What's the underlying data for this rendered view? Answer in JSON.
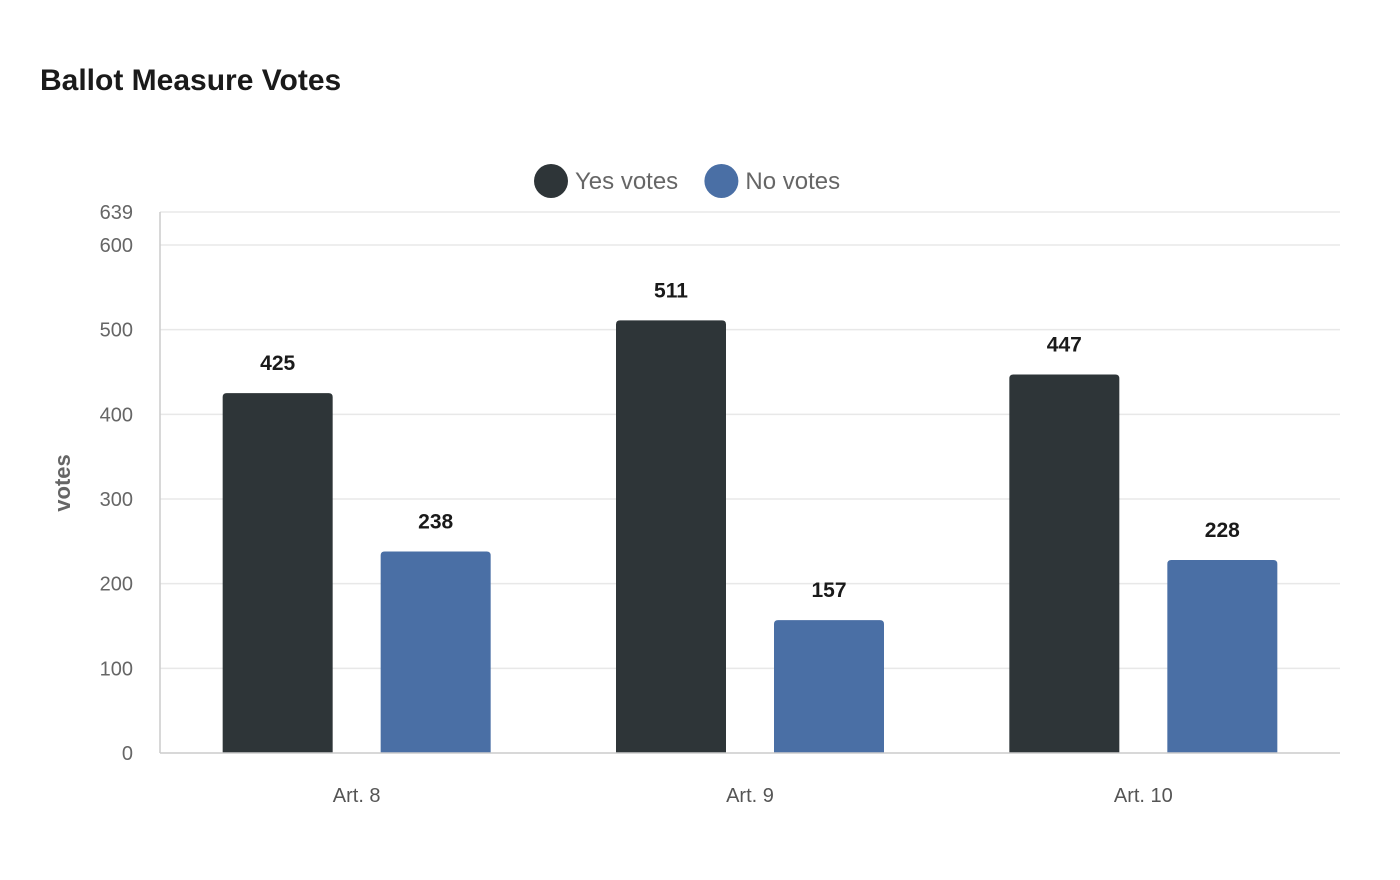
{
  "chart_data": {
    "type": "bar",
    "title": "Ballot Measure Votes",
    "ylabel": "votes",
    "xlabel": "",
    "categories": [
      "Art. 8",
      "Art. 9",
      "Art. 10"
    ],
    "series": [
      {
        "name": "Yes votes",
        "color": "#2e3538",
        "values": [
          425,
          511,
          447
        ]
      },
      {
        "name": "No votes",
        "color": "#4a6fa5",
        "values": [
          238,
          157,
          228
        ]
      }
    ],
    "ylim": [
      0,
      639
    ],
    "yticks": [
      0,
      100,
      200,
      300,
      400,
      500,
      600,
      639
    ],
    "grid": true,
    "legend_position": "top-center",
    "data_labels": true
  }
}
